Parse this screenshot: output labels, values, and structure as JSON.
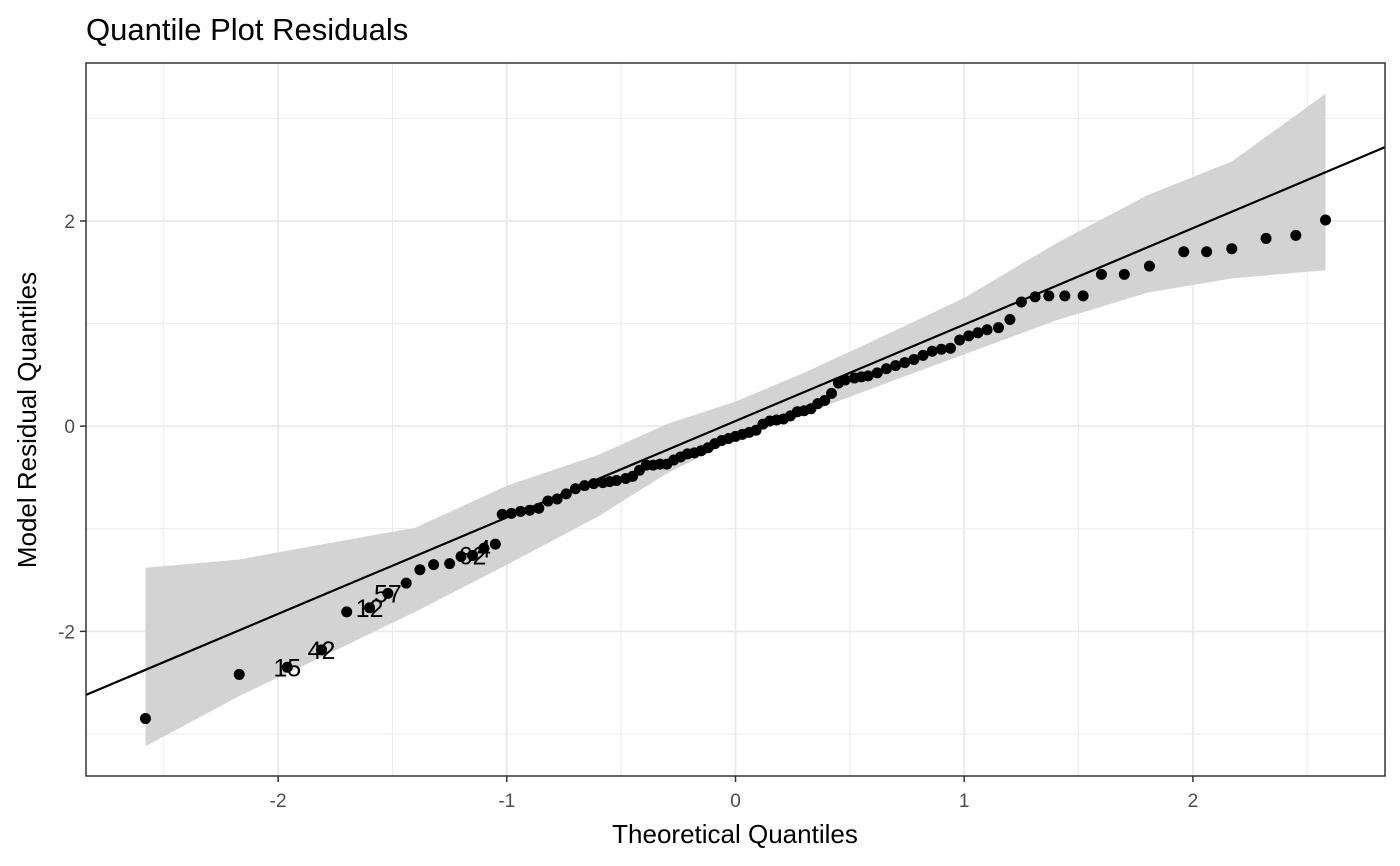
{
  "chart_data": {
    "type": "scatter",
    "title": "Quantile Plot Residuals",
    "xlabel": "Theoretical Quantiles",
    "ylabel": "Model Residual Quantiles",
    "xlim": [
      -2.84,
      2.84
    ],
    "ylim": [
      -3.41,
      3.54
    ],
    "x_ticks": [
      -2,
      -1,
      0,
      1,
      2
    ],
    "y_ticks": [
      -2,
      0,
      2
    ],
    "grid": true,
    "legend": "none",
    "colors": {
      "points": "#000000",
      "line": "#000000",
      "band": "#d3d3d3",
      "grid": "#ebebeb",
      "panel_border": "#333333"
    },
    "reference_line": {
      "slope": 0.94,
      "intercept": 0.05
    },
    "confidence_band": [
      {
        "x": -2.58,
        "lower": -3.12,
        "upper": -1.38
      },
      {
        "x": -2.17,
        "lower": -2.63,
        "upper": -1.3
      },
      {
        "x": -1.8,
        "lower": -2.24,
        "upper": -1.15
      },
      {
        "x": -1.4,
        "lower": -1.81,
        "upper": -0.99
      },
      {
        "x": -1.0,
        "lower": -1.35,
        "upper": -0.58
      },
      {
        "x": -0.6,
        "lower": -0.88,
        "upper": -0.28
      },
      {
        "x": -0.3,
        "lower": -0.46,
        "upper": 0.02
      },
      {
        "x": 0.0,
        "lower": -0.13,
        "upper": 0.24
      },
      {
        "x": 0.3,
        "lower": 0.12,
        "upper": 0.52
      },
      {
        "x": 0.6,
        "lower": 0.37,
        "upper": 0.83
      },
      {
        "x": 1.0,
        "lower": 0.7,
        "upper": 1.25
      },
      {
        "x": 1.4,
        "lower": 1.03,
        "upper": 1.78
      },
      {
        "x": 1.8,
        "lower": 1.3,
        "upper": 2.25
      },
      {
        "x": 2.17,
        "lower": 1.44,
        "upper": 2.58
      },
      {
        "x": 2.58,
        "lower": 1.52,
        "upper": 3.24
      }
    ],
    "points": [
      {
        "x": -2.58,
        "y": -2.85
      },
      {
        "x": -2.17,
        "y": -2.42
      },
      {
        "x": -1.96,
        "y": -2.35
      },
      {
        "x": -1.81,
        "y": -2.18
      },
      {
        "x": -1.7,
        "y": -1.81
      },
      {
        "x": -1.6,
        "y": -1.77
      },
      {
        "x": -1.52,
        "y": -1.63
      },
      {
        "x": -1.44,
        "y": -1.53
      },
      {
        "x": -1.38,
        "y": -1.4
      },
      {
        "x": -1.32,
        "y": -1.35
      },
      {
        "x": -1.25,
        "y": -1.34
      },
      {
        "x": -1.2,
        "y": -1.27
      },
      {
        "x": -1.15,
        "y": -1.26
      },
      {
        "x": -1.1,
        "y": -1.19
      },
      {
        "x": -1.05,
        "y": -1.15
      },
      {
        "x": -1.02,
        "y": -0.86
      },
      {
        "x": -0.98,
        "y": -0.85
      },
      {
        "x": -0.94,
        "y": -0.83
      },
      {
        "x": -0.9,
        "y": -0.82
      },
      {
        "x": -0.86,
        "y": -0.8
      },
      {
        "x": -0.82,
        "y": -0.73
      },
      {
        "x": -0.78,
        "y": -0.71
      },
      {
        "x": -0.74,
        "y": -0.66
      },
      {
        "x": -0.7,
        "y": -0.61
      },
      {
        "x": -0.66,
        "y": -0.58
      },
      {
        "x": -0.62,
        "y": -0.56
      },
      {
        "x": -0.58,
        "y": -0.55
      },
      {
        "x": -0.55,
        "y": -0.54
      },
      {
        "x": -0.52,
        "y": -0.53
      },
      {
        "x": -0.48,
        "y": -0.51
      },
      {
        "x": -0.45,
        "y": -0.49
      },
      {
        "x": -0.42,
        "y": -0.43
      },
      {
        "x": -0.39,
        "y": -0.38
      },
      {
        "x": -0.36,
        "y": -0.38
      },
      {
        "x": -0.33,
        "y": -0.37
      },
      {
        "x": -0.3,
        "y": -0.37
      },
      {
        "x": -0.27,
        "y": -0.33
      },
      {
        "x": -0.24,
        "y": -0.3
      },
      {
        "x": -0.21,
        "y": -0.27
      },
      {
        "x": -0.18,
        "y": -0.26
      },
      {
        "x": -0.15,
        "y": -0.24
      },
      {
        "x": -0.12,
        "y": -0.21
      },
      {
        "x": -0.09,
        "y": -0.17
      },
      {
        "x": -0.06,
        "y": -0.14
      },
      {
        "x": -0.03,
        "y": -0.12
      },
      {
        "x": 0.0,
        "y": -0.1
      },
      {
        "x": 0.03,
        "y": -0.08
      },
      {
        "x": 0.06,
        "y": -0.06
      },
      {
        "x": 0.09,
        "y": -0.04
      },
      {
        "x": 0.12,
        "y": 0.02
      },
      {
        "x": 0.15,
        "y": 0.05
      },
      {
        "x": 0.18,
        "y": 0.06
      },
      {
        "x": 0.21,
        "y": 0.07
      },
      {
        "x": 0.24,
        "y": 0.1
      },
      {
        "x": 0.27,
        "y": 0.14
      },
      {
        "x": 0.3,
        "y": 0.15
      },
      {
        "x": 0.33,
        "y": 0.17
      },
      {
        "x": 0.36,
        "y": 0.22
      },
      {
        "x": 0.39,
        "y": 0.25
      },
      {
        "x": 0.42,
        "y": 0.32
      },
      {
        "x": 0.45,
        "y": 0.42
      },
      {
        "x": 0.48,
        "y": 0.45
      },
      {
        "x": 0.52,
        "y": 0.47
      },
      {
        "x": 0.55,
        "y": 0.48
      },
      {
        "x": 0.58,
        "y": 0.49
      },
      {
        "x": 0.62,
        "y": 0.52
      },
      {
        "x": 0.66,
        "y": 0.56
      },
      {
        "x": 0.7,
        "y": 0.59
      },
      {
        "x": 0.74,
        "y": 0.62
      },
      {
        "x": 0.78,
        "y": 0.65
      },
      {
        "x": 0.82,
        "y": 0.69
      },
      {
        "x": 0.86,
        "y": 0.73
      },
      {
        "x": 0.9,
        "y": 0.75
      },
      {
        "x": 0.94,
        "y": 0.76
      },
      {
        "x": 0.98,
        "y": 0.84
      },
      {
        "x": 1.02,
        "y": 0.88
      },
      {
        "x": 1.06,
        "y": 0.91
      },
      {
        "x": 1.1,
        "y": 0.94
      },
      {
        "x": 1.15,
        "y": 0.96
      },
      {
        "x": 1.2,
        "y": 1.04
      },
      {
        "x": 1.25,
        "y": 1.21
      },
      {
        "x": 1.31,
        "y": 1.26
      },
      {
        "x": 1.37,
        "y": 1.27
      },
      {
        "x": 1.44,
        "y": 1.27
      },
      {
        "x": 1.52,
        "y": 1.27
      },
      {
        "x": 1.6,
        "y": 1.48
      },
      {
        "x": 1.7,
        "y": 1.48
      },
      {
        "x": 1.81,
        "y": 1.56
      },
      {
        "x": 1.96,
        "y": 1.7
      },
      {
        "x": 2.06,
        "y": 1.7
      },
      {
        "x": 2.17,
        "y": 1.73
      },
      {
        "x": 2.32,
        "y": 1.83
      },
      {
        "x": 2.45,
        "y": 1.86
      },
      {
        "x": 2.58,
        "y": 2.01
      }
    ],
    "point_labels": [
      {
        "text": "15",
        "x": -1.96,
        "y": -2.35
      },
      {
        "text": "42",
        "x": -1.81,
        "y": -2.18
      },
      {
        "text": "12",
        "x": -1.6,
        "y": -1.77
      },
      {
        "text": "57",
        "x": -1.52,
        "y": -1.63
      },
      {
        "text": "62",
        "x": -1.15,
        "y": -1.26
      },
      {
        "text": "4",
        "x": -1.1,
        "y": -1.19
      }
    ]
  }
}
